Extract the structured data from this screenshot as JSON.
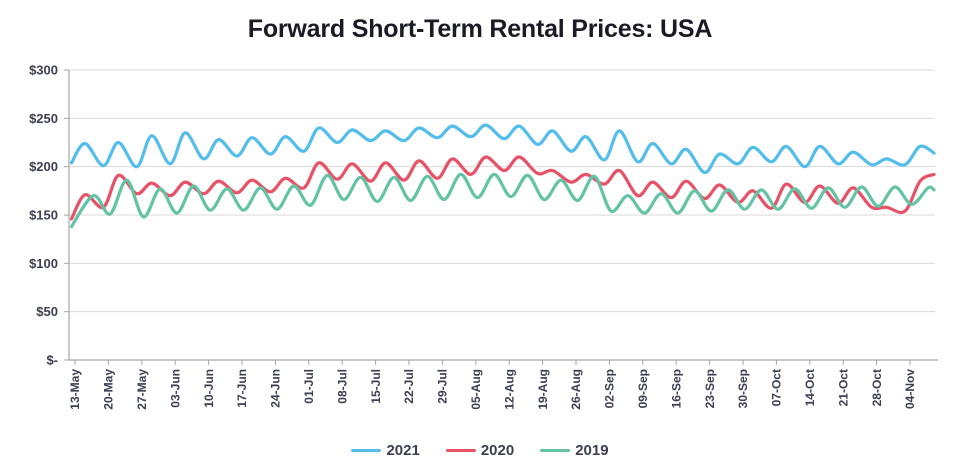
{
  "colors": {
    "background": "#ffffff",
    "title_text": "#1b1b26",
    "axis_line": "#a6a6a6",
    "gridline": "#dadada",
    "label_text": "#3a3f52"
  },
  "legend": {
    "position": "bottom-center"
  },
  "chart_data": {
    "type": "line",
    "title": "Forward Short-Term Rental Prices: USA",
    "xlabel": "",
    "ylabel": "",
    "ylim": [
      0,
      300
    ],
    "grid": "horizontal-only",
    "legend_position": "bottom",
    "y_ticks": {
      "labels": [
        "$300",
        "$250",
        "$200",
        "$150",
        "$100",
        "$50",
        "$-"
      ],
      "values": [
        300,
        250,
        200,
        150,
        100,
        50,
        0
      ]
    },
    "x_labels": [
      "13-May",
      "20-May",
      "27-May",
      "03-Jun",
      "10-Jun",
      "17-Jun",
      "24-Jun",
      "01-Jul",
      "08-Jul",
      "15-Jul",
      "22-Jul",
      "29-Jul",
      "05-Aug",
      "12-Aug",
      "19-Aug",
      "26-Aug",
      "02-Sep",
      "09-Sep",
      "16-Sep",
      "23-Sep",
      "30-Sep",
      "07-Oct",
      "14-Oct",
      "21-Oct",
      "28-Oct",
      "04-Nov"
    ],
    "x_note": "daily prices oscillating weekly; weekly_high = weekend peak, weekly_low = midweek trough, in USD",
    "series": [
      {
        "name": "2021",
        "color": "#53BDEB",
        "start": 204,
        "end": 214,
        "high_phase": 0.3,
        "low_phase": 0.85,
        "weekly_high": [
          224,
          225,
          232,
          235,
          228,
          230,
          231,
          240,
          238,
          237,
          240,
          242,
          243,
          242,
          237,
          231,
          237,
          224,
          218,
          213,
          220,
          221,
          221,
          215,
          208,
          221
        ],
        "weekly_low": [
          201,
          200,
          203,
          208,
          211,
          213,
          216,
          225,
          227,
          227,
          230,
          231,
          229,
          223,
          216,
          207,
          205,
          203,
          194,
          203,
          205,
          200,
          203,
          202,
          202,
          214
        ]
      },
      {
        "name": "2020",
        "color": "#E85266",
        "start": 146,
        "end": 192,
        "high_phase": 0.3,
        "low_phase": 0.85,
        "weekly_high": [
          171,
          191,
          183,
          184,
          185,
          186,
          188,
          204,
          203,
          204,
          206,
          208,
          210,
          210,
          196,
          192,
          196,
          184,
          185,
          181,
          175,
          182,
          180,
          178,
          158,
          185
        ],
        "weekly_low": [
          158,
          172,
          170,
          172,
          173,
          174,
          178,
          187,
          185,
          186,
          188,
          192,
          196,
          193,
          184,
          182,
          170,
          168,
          167,
          163,
          157,
          163,
          162,
          158,
          154,
          192
        ]
      },
      {
        "name": "2019",
        "color": "#63C3A4",
        "start": 138,
        "end": 176,
        "high_phase": 0.55,
        "low_phase": 1.05,
        "weekly_high": [
          170,
          186,
          177,
          180,
          177,
          178,
          180,
          191,
          189,
          189,
          190,
          192,
          192,
          191,
          186,
          190,
          170,
          172,
          175,
          176,
          176,
          177,
          178,
          179,
          179,
          178
        ],
        "weekly_low": [
          151,
          148,
          152,
          155,
          155,
          156,
          160,
          166,
          164,
          165,
          166,
          168,
          169,
          166,
          165,
          154,
          152,
          152,
          154,
          156,
          156,
          157,
          158,
          159,
          161,
          176
        ]
      }
    ]
  }
}
